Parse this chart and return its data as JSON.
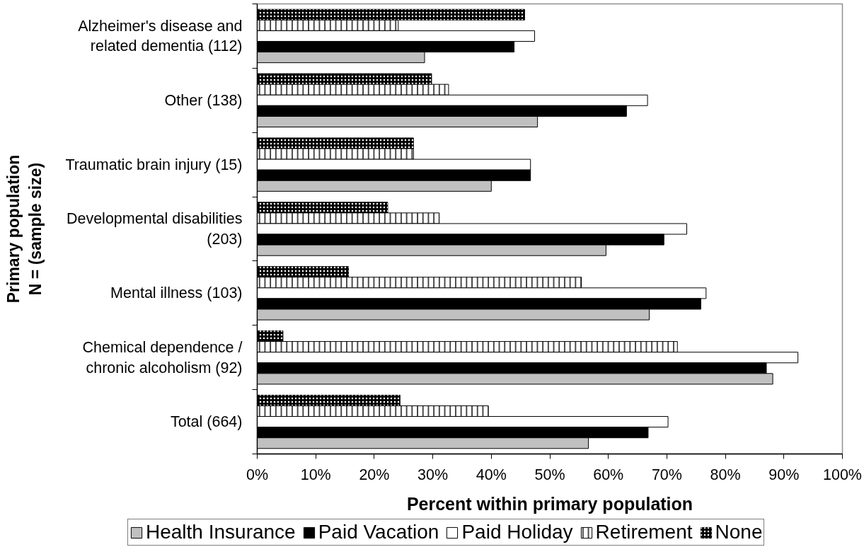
{
  "chart_data": {
    "type": "bar",
    "orientation": "horizontal",
    "xlabel": "Percent within primary population",
    "ylabel": "Primary population\nN = (sample size)",
    "categories": [
      "Alzheimer's disease and\nrelated dementia (112)",
      "Other (138)",
      "Traumatic brain injury (15)",
      "Developmental disabilities\n(203)",
      "Mental illness (103)",
      "Chemical dependence /\nchronic alcoholism (92)",
      "Total (664)"
    ],
    "series": [
      {
        "name": "None",
        "color": "#000000",
        "values": [
          45.7,
          29.8,
          26.7,
          22.3,
          15.6,
          4.4,
          24.4
        ]
      },
      {
        "name": "Retirement",
        "color": "#ffffff",
        "values": [
          24.1,
          32.7,
          26.7,
          31.1,
          55.4,
          71.8,
          39.5
        ]
      },
      {
        "name": "Paid Holiday",
        "color": "#ffffff",
        "values": [
          47.4,
          66.7,
          46.7,
          73.4,
          76.7,
          92.4,
          70.2
        ]
      },
      {
        "name": "Paid Vacation",
        "color": "#000000",
        "values": [
          43.9,
          63.1,
          46.7,
          69.5,
          75.8,
          87.0,
          66.8
        ]
      },
      {
        "name": "Health Insurance",
        "color": "#c0c0c0",
        "values": [
          28.6,
          47.9,
          40.0,
          59.6,
          67.0,
          88.1,
          56.6
        ]
      }
    ],
    "xlim": [
      0,
      100
    ],
    "xticks": [
      {
        "value": 0,
        "label": "0%"
      },
      {
        "value": 10,
        "label": "10%"
      },
      {
        "value": 20,
        "label": "20%"
      },
      {
        "value": 30,
        "label": "30%"
      },
      {
        "value": 40,
        "label": "40%"
      },
      {
        "value": 50,
        "label": "50%"
      },
      {
        "value": 60,
        "label": "60%"
      },
      {
        "value": 70,
        "label": "70%"
      },
      {
        "value": 80,
        "label": "80%"
      },
      {
        "value": 90,
        "label": "90%"
      },
      {
        "value": 100,
        "label": "100%"
      }
    ],
    "legend": "bottom"
  }
}
